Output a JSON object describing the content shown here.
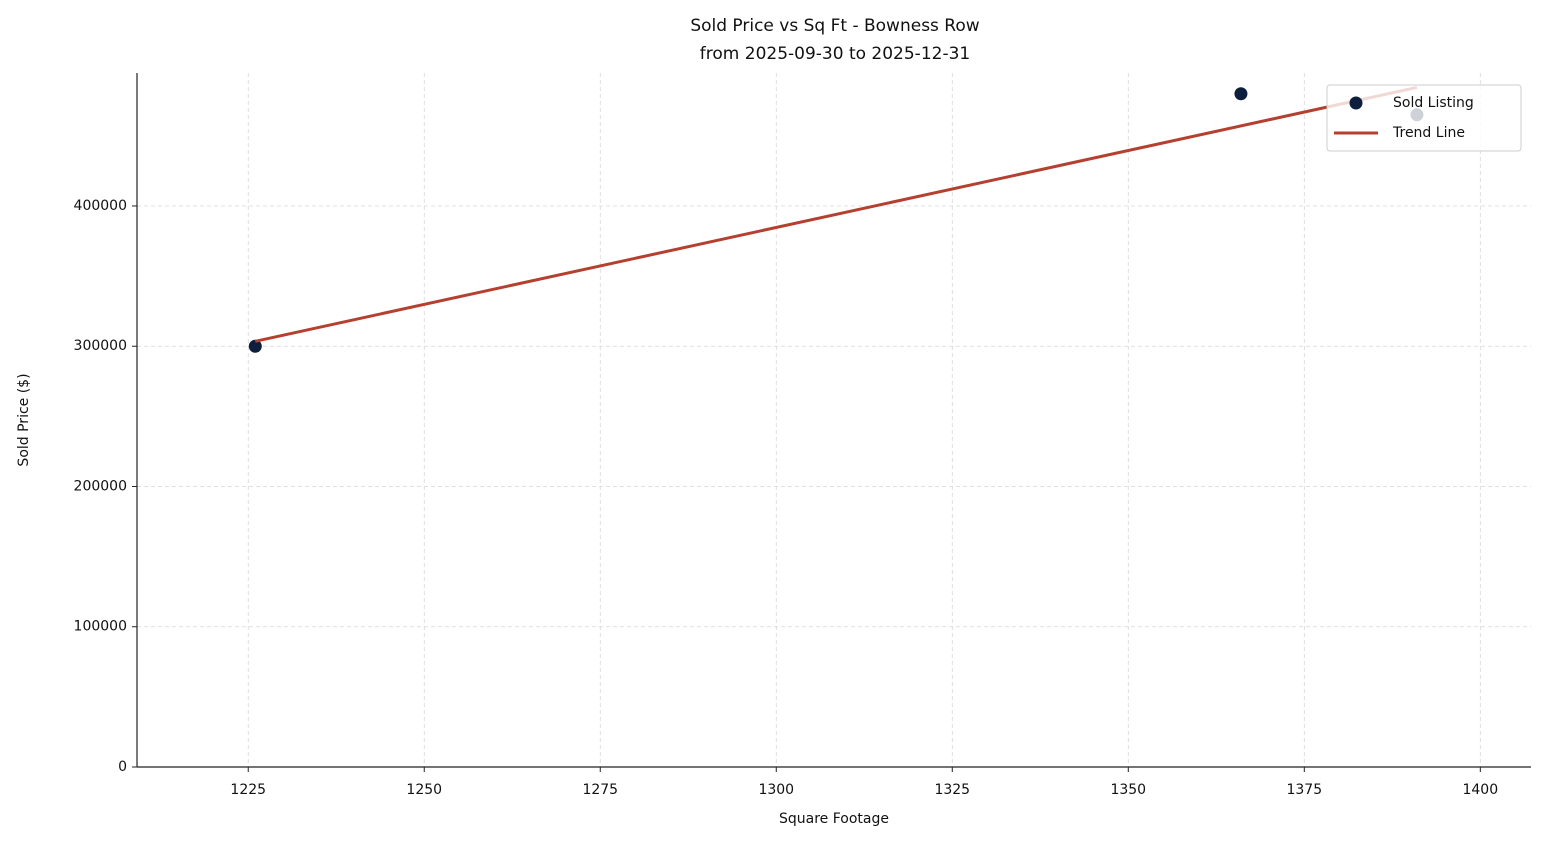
{
  "chart_data": {
    "type": "scatter",
    "title": "Sold Price vs Sq Ft - Bowness Row",
    "subtitle": "from 2025-09-30 to 2025-12-31",
    "x_label": "Square Footage",
    "y_label": "Sold Price ($)",
    "xlim": [
      1209.2,
      1407.2
    ],
    "ylim": [
      0,
      494800
    ],
    "xticks": [
      1225,
      1250,
      1275,
      1300,
      1325,
      1350,
      1375,
      1400
    ],
    "yticks": [
      0,
      100000,
      200000,
      300000,
      400000
    ],
    "grid": true,
    "legend": "upper right",
    "series": [
      {
        "name": "Sold Listing",
        "type": "scatter",
        "color": "#0d1f3c",
        "x": [
          1226,
          1366,
          1391
        ],
        "values": [
          300000,
          480000,
          465000
        ]
      },
      {
        "name": "Trend Line",
        "type": "line",
        "color": "#b5402f",
        "x": [
          1226,
          1391
        ],
        "values": [
          303500,
          484500
        ]
      }
    ]
  }
}
